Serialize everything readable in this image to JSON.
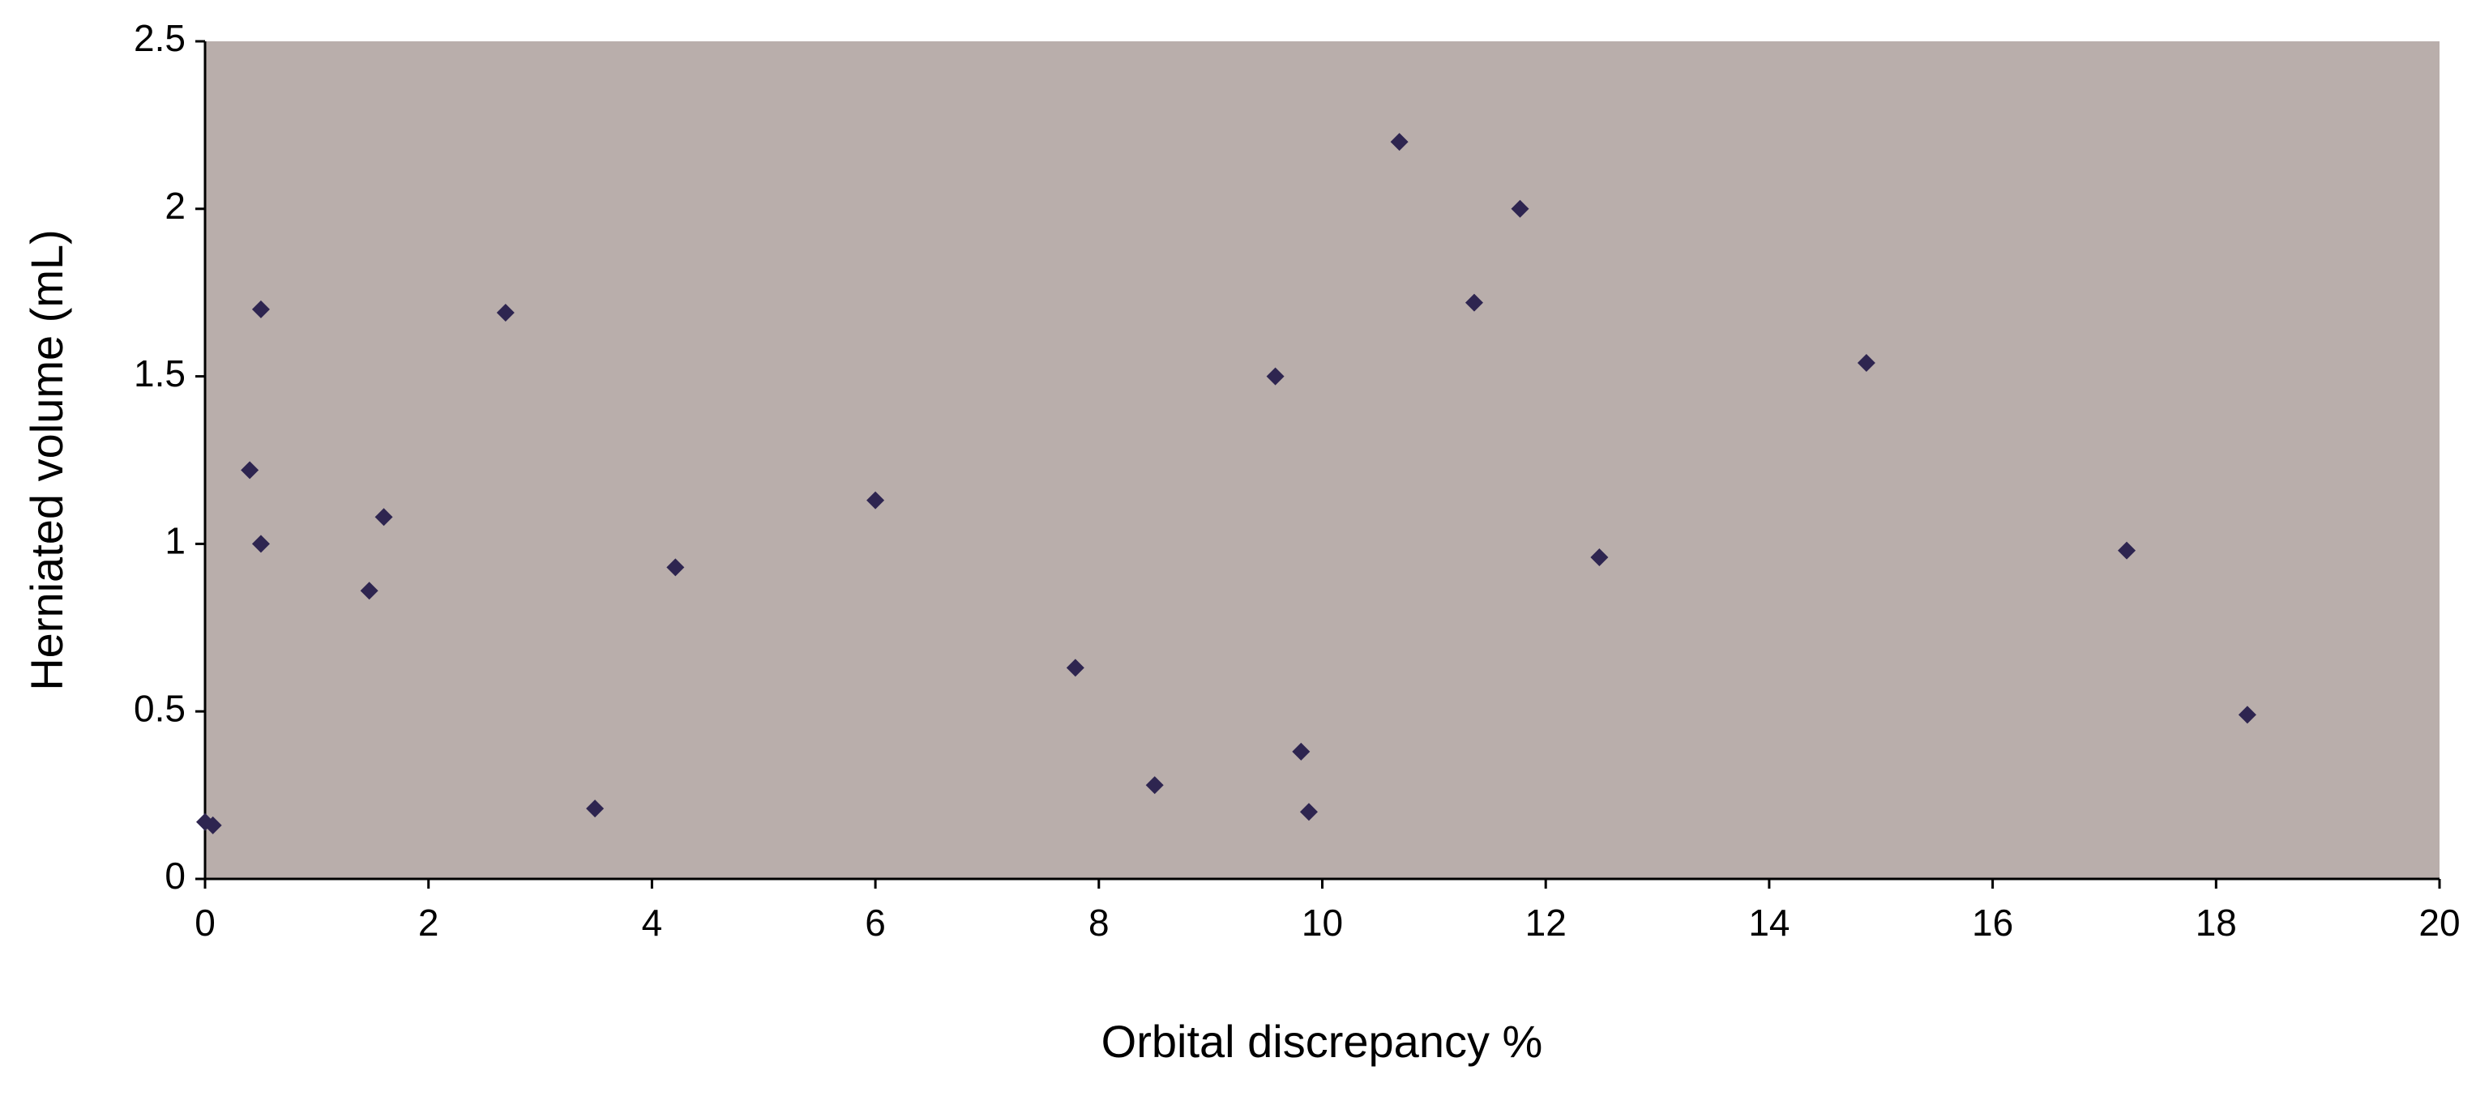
{
  "chart_data": {
    "type": "scatter",
    "x_label": "Orbital discrepancy %",
    "y_label": "Herniated volume (mL)",
    "series": [
      {
        "color": "#2e2550",
        "x": [
          0,
          0.07,
          0.4,
          0.5,
          0.5,
          1.47,
          1.6,
          2.69,
          3.49,
          4.21,
          6.0,
          7.79,
          8.5,
          9.58,
          9.81,
          9.88,
          10.69,
          11.36,
          11.77,
          12.48,
          14.87,
          17.2,
          18.28
        ],
        "values": [
          0.17,
          0.16,
          1.22,
          1.7,
          1.0,
          0.86,
          1.08,
          1.69,
          0.21,
          0.93,
          1.13,
          0.63,
          0.28,
          1.5,
          0.38,
          0.2,
          2.2,
          1.72,
          2.0,
          0.96,
          1.54,
          0.98,
          0.49
        ]
      }
    ],
    "xlim": [
      0,
      20
    ],
    "xticks": [
      0,
      2,
      4,
      6,
      8,
      10,
      12,
      14,
      16,
      18,
      20
    ],
    "ylim": [
      0,
      2.5
    ],
    "yticks": [
      0,
      0.5,
      1,
      1.5,
      2,
      2.5
    ],
    "plot_background": "#b9aeab",
    "grid": false
  }
}
